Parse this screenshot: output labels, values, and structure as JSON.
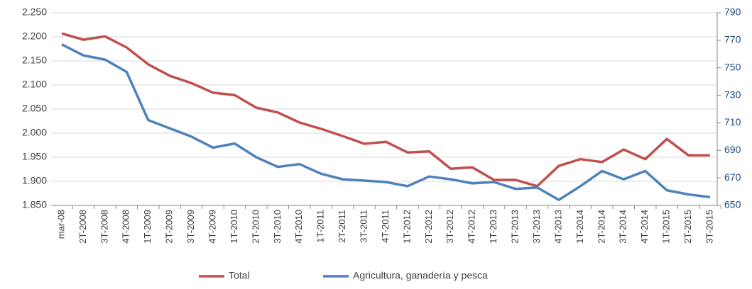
{
  "chart_data": {
    "type": "line",
    "categories": [
      "mar-08",
      "2T-2008",
      "3T-2008",
      "4T-2008",
      "1T-2009",
      "2T-2009",
      "3T-2009",
      "4T-2009",
      "1T-2010",
      "2T-2010",
      "3T-2010",
      "4T-2010",
      "1T-2011",
      "2T-2011",
      "3T-2011",
      "4T-2011",
      "1T-2012",
      "2T-2012",
      "3T-2012",
      "4T-2012",
      "1T-2013",
      "2T-2013",
      "3T-2013",
      "4T-2013",
      "1T-2014",
      "2T-2014",
      "3T-2014",
      "4T-2014",
      "1T-2015",
      "2T-2015",
      "3T-2015"
    ],
    "series": [
      {
        "name": "Total",
        "color": "#c0504d",
        "values": [
          2207,
          2194,
          2201,
          2178,
          2143,
          2119,
          2104,
          2084,
          2079,
          2053,
          2043,
          2022,
          2009,
          1994,
          1978,
          1982,
          1960,
          1962,
          1926,
          1929,
          1903,
          1903,
          1890,
          1932,
          1946,
          1940,
          1966,
          1946,
          1988,
          1954,
          1954
        ]
      },
      {
        "name": "Agricultura, ganadería y pesca",
        "color": "#4f81bd",
        "axis": "y2",
        "values": [
          767,
          759,
          756,
          747,
          712,
          706,
          700,
          692,
          695,
          685,
          678,
          680,
          673,
          669,
          668,
          667,
          664,
          671,
          669,
          666,
          667,
          662,
          663,
          654,
          664,
          675,
          669,
          675,
          661,
          658,
          656
        ]
      }
    ],
    "ylim": [
      1850,
      2250
    ],
    "yticks": [
      {
        "value": 1850,
        "label": "1.850"
      },
      {
        "value": 1900,
        "label": "1.900"
      },
      {
        "value": 1950,
        "label": "1.950"
      },
      {
        "value": 2000,
        "label": "2.000"
      },
      {
        "value": 2050,
        "label": "2.050"
      },
      {
        "value": 2100,
        "label": "2.100"
      },
      {
        "value": 2150,
        "label": "2.150"
      },
      {
        "value": 2200,
        "label": "2.200"
      },
      {
        "value": 2250,
        "label": "2.250"
      }
    ],
    "y2lim": [
      650,
      790
    ],
    "y2ticks": [
      650,
      670,
      690,
      710,
      730,
      750,
      770,
      790
    ],
    "grid": true
  }
}
